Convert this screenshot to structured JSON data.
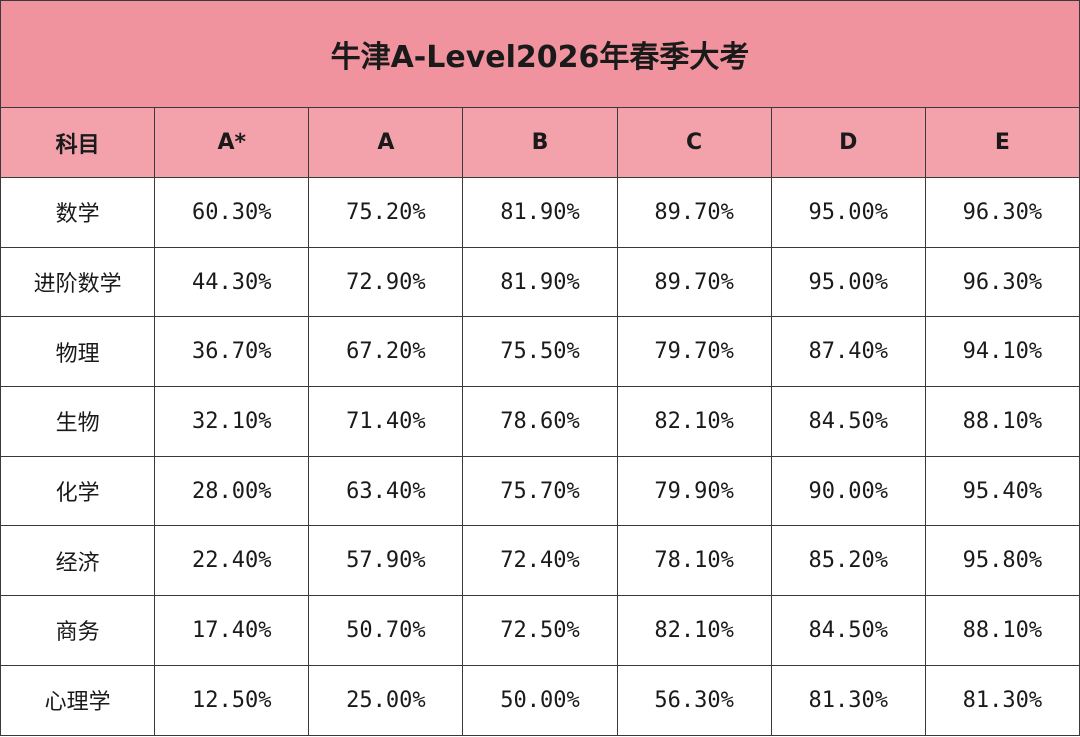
{
  "header": {
    "title": "牛津A-Level2026年春季大考"
  },
  "table": {
    "columns": [
      "科目",
      "A*",
      "A",
      "B",
      "C",
      "D",
      "E"
    ],
    "rows": [
      [
        "数学",
        "60.30%",
        "75.20%",
        "81.90%",
        "89.70%",
        "95.00%",
        "96.30%"
      ],
      [
        "进阶数学",
        "44.30%",
        "72.90%",
        "81.90%",
        "89.70%",
        "95.00%",
        "96.30%"
      ],
      [
        "物理",
        "36.70%",
        "67.20%",
        "75.50%",
        "79.70%",
        "87.40%",
        "94.10%"
      ],
      [
        "生物",
        "32.10%",
        "71.40%",
        "78.60%",
        "82.10%",
        "84.50%",
        "88.10%"
      ],
      [
        "化学",
        "28.00%",
        "63.40%",
        "75.70%",
        "79.90%",
        "90.00%",
        "95.40%"
      ],
      [
        "经济",
        "22.40%",
        "57.90%",
        "72.40%",
        "78.10%",
        "85.20%",
        "95.80%"
      ],
      [
        "商务",
        "17.40%",
        "50.70%",
        "72.50%",
        "82.10%",
        "84.50%",
        "88.10%"
      ],
      [
        "心理学",
        "12.50%",
        "25.00%",
        "50.00%",
        "56.30%",
        "81.30%",
        "81.30%"
      ]
    ]
  }
}
